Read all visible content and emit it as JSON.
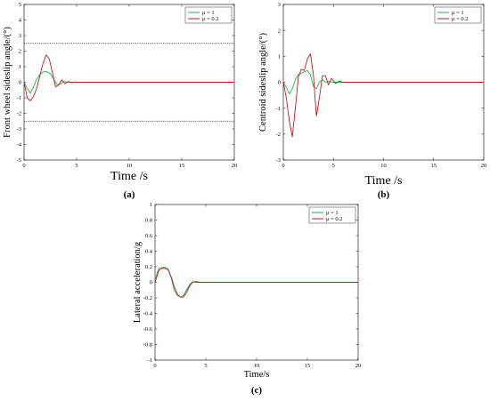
{
  "chart_data": [
    {
      "type": "line",
      "panel": "a",
      "caption": "(a)",
      "xlabel": "Time /s",
      "ylabel": "Front wheel sideslip angle/(°)",
      "xlim": [
        0,
        20
      ],
      "ylim": [
        -5,
        5
      ],
      "x_ticks": [
        "0",
        "5",
        "10",
        "15",
        "20"
      ],
      "y_ticks": [
        "5",
        "4",
        "3",
        "2",
        "1",
        "0",
        "-1",
        "-2",
        "-3",
        "-4",
        "-5"
      ],
      "reference_lines": [
        2.5,
        -2.5
      ],
      "legend": "top-right",
      "grid": false,
      "series": [
        {
          "name": "μ = 1",
          "color": "#22b14c",
          "x": [
            0,
            0.3,
            0.6,
            0.9,
            1.2,
            1.5,
            1.8,
            2.1,
            2.5,
            2.9,
            3.2,
            3.5,
            3.8,
            4.1,
            4.5,
            5,
            6,
            20
          ],
          "y": [
            0,
            -0.4,
            -0.7,
            -0.3,
            0.2,
            0.5,
            0.65,
            0.7,
            0.55,
            0.1,
            -0.2,
            -0.1,
            0.05,
            0,
            0,
            0,
            0,
            0
          ]
        },
        {
          "name": "μ = 0.2",
          "color": "#b22222",
          "x": [
            0,
            0.3,
            0.6,
            0.9,
            1.2,
            1.5,
            1.8,
            2.1,
            2.4,
            2.7,
            3.0,
            3.3,
            3.6,
            3.9,
            4.2,
            4.5,
            4.8,
            5.2,
            6,
            20
          ],
          "y": [
            0,
            -1.0,
            -1.2,
            -0.9,
            -0.4,
            0.4,
            1.2,
            1.75,
            1.5,
            0.6,
            -0.3,
            -0.15,
            0.15,
            -0.1,
            0.05,
            -0.03,
            0.02,
            0,
            0,
            0
          ]
        }
      ]
    },
    {
      "type": "line",
      "panel": "b",
      "caption": "(b)",
      "xlabel": "Time /s",
      "ylabel": "Centroid sideslip angle/(°)",
      "xlim": [
        0,
        20
      ],
      "ylim": [
        -3,
        3
      ],
      "x_ticks": [
        "0",
        "5",
        "10",
        "15",
        "20"
      ],
      "y_ticks": [
        "3",
        "2",
        "1",
        "0",
        "-1",
        "-2",
        "-3"
      ],
      "legend": "top-right",
      "grid": false,
      "series": [
        {
          "name": "μ = 1",
          "color": "#22b14c",
          "x": [
            0,
            0.3,
            0.6,
            0.9,
            1.2,
            1.5,
            1.8,
            2.1,
            2.4,
            2.7,
            3.0,
            3.3,
            3.6,
            3.9,
            4.2,
            4.5,
            5,
            6,
            20
          ],
          "y": [
            0,
            -0.2,
            -0.45,
            -0.25,
            0.1,
            0.3,
            0.35,
            0.4,
            0.45,
            0.3,
            -0.15,
            -0.25,
            0,
            0.1,
            0,
            0.03,
            0,
            0,
            0
          ]
        },
        {
          "name": "μ = 0.2",
          "color": "#b22222",
          "x": [
            0,
            0.3,
            0.6,
            0.9,
            1.2,
            1.5,
            1.8,
            2.1,
            2.4,
            2.7,
            3.0,
            3.3,
            3.6,
            3.9,
            4.2,
            4.5,
            4.8,
            5.2,
            5.6,
            6,
            20
          ],
          "y": [
            0,
            -0.6,
            -1.5,
            -2.1,
            -1.0,
            0.2,
            0.5,
            0.45,
            0.9,
            1.1,
            0.3,
            -1.3,
            -0.6,
            0.25,
            0.25,
            -0.1,
            0.15,
            -0.05,
            0.05,
            0,
            0
          ]
        }
      ]
    },
    {
      "type": "line",
      "panel": "c",
      "caption": "(c)",
      "xlabel": "Time/s",
      "ylabel": "Lateral acceleration/g",
      "xlim": [
        0,
        20
      ],
      "ylim": [
        -1,
        1
      ],
      "x_ticks": [
        "0",
        "5",
        "10",
        "15",
        "20"
      ],
      "y_ticks": [
        "1",
        "0.8",
        "0.6",
        "0.4",
        "0.2",
        "0",
        "-0.2",
        "-0.4",
        "-0.6",
        "-0.8",
        "-1"
      ],
      "legend": "top-right",
      "grid": false,
      "series": [
        {
          "name": "μ = 1",
          "color": "#22b14c",
          "x": [
            0,
            0.2,
            0.4,
            0.7,
            1.0,
            1.3,
            1.6,
            1.9,
            2.2,
            2.5,
            2.8,
            3.1,
            3.4,
            3.7,
            4.0,
            4.5,
            5,
            20
          ],
          "y": [
            0,
            0.12,
            0.18,
            0.19,
            0.19,
            0.17,
            0.05,
            -0.1,
            -0.17,
            -0.19,
            -0.17,
            -0.1,
            -0.03,
            0.01,
            0,
            0,
            0,
            0
          ]
        },
        {
          "name": "μ = 0.2",
          "color": "#b22222",
          "x": [
            0,
            0.2,
            0.4,
            0.7,
            1.0,
            1.3,
            1.6,
            1.9,
            2.2,
            2.5,
            2.8,
            3.1,
            3.4,
            3.7,
            4.0,
            4.5,
            5,
            20
          ],
          "y": [
            0,
            0.08,
            0.16,
            0.18,
            0.18,
            0.16,
            0.07,
            -0.06,
            -0.15,
            -0.19,
            -0.19,
            -0.13,
            -0.05,
            0.0,
            0.01,
            0,
            0,
            0
          ]
        }
      ]
    }
  ]
}
